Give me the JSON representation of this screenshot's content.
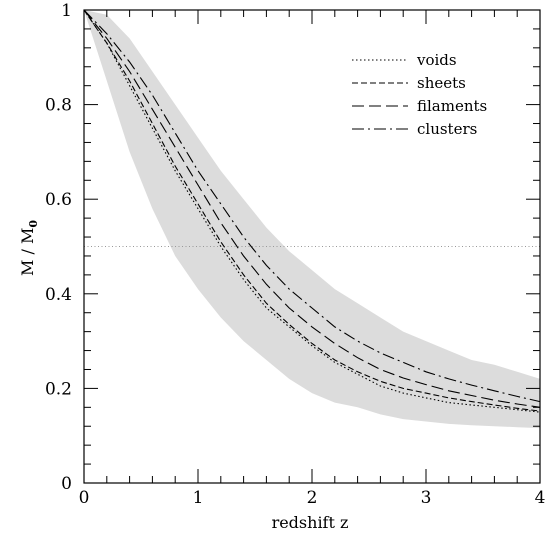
{
  "chart_data": {
    "type": "line",
    "xlabel": "redshift z",
    "ylabel": {
      "main": "M / M",
      "subscript": "0"
    },
    "xlim": [
      0,
      4
    ],
    "ylim": [
      0,
      1
    ],
    "x_ticks": [
      0,
      1,
      2,
      3,
      4
    ],
    "y_ticks": [
      0,
      0.2,
      0.4,
      0.6,
      0.8,
      1
    ],
    "x_tick_labels": [
      "0",
      "1",
      "2",
      "3",
      "4"
    ],
    "y_tick_labels": [
      "0",
      "0.2",
      "0.4",
      "0.6",
      "0.8",
      "1"
    ],
    "grid": false,
    "legend_position": "top-right",
    "reference_line": {
      "y": 0.5,
      "style": "dotted",
      "color": "#999999"
    },
    "band": {
      "color": "#dcdcdc",
      "x": [
        0,
        0.2,
        0.4,
        0.6,
        0.8,
        1.0,
        1.2,
        1.4,
        1.6,
        1.8,
        2.0,
        2.2,
        2.4,
        2.6,
        2.8,
        3.0,
        3.2,
        3.4,
        3.6,
        3.8,
        4.0
      ],
      "lower": [
        1.0,
        0.85,
        0.7,
        0.58,
        0.48,
        0.41,
        0.35,
        0.3,
        0.26,
        0.22,
        0.19,
        0.17,
        0.16,
        0.145,
        0.135,
        0.13,
        0.125,
        0.122,
        0.12,
        0.118,
        0.116
      ],
      "upper": [
        1.0,
        0.99,
        0.94,
        0.87,
        0.8,
        0.73,
        0.66,
        0.6,
        0.54,
        0.49,
        0.45,
        0.41,
        0.38,
        0.35,
        0.32,
        0.3,
        0.28,
        0.26,
        0.25,
        0.235,
        0.22
      ]
    },
    "x": [
      0,
      0.2,
      0.4,
      0.6,
      0.8,
      1.0,
      1.2,
      1.4,
      1.6,
      1.8,
      2.0,
      2.2,
      2.4,
      2.6,
      2.8,
      3.0,
      3.2,
      3.4,
      3.6,
      3.8,
      4.0
    ],
    "series": [
      {
        "name": "voids",
        "dash": "1.5,2.5",
        "values": [
          1.0,
          0.93,
          0.84,
          0.75,
          0.66,
          0.58,
          0.5,
          0.43,
          0.37,
          0.33,
          0.29,
          0.255,
          0.23,
          0.205,
          0.19,
          0.18,
          0.17,
          0.165,
          0.16,
          0.155,
          0.15
        ]
      },
      {
        "name": "sheets",
        "dash": "6,3",
        "values": [
          1.0,
          0.93,
          0.85,
          0.76,
          0.67,
          0.59,
          0.51,
          0.44,
          0.38,
          0.335,
          0.295,
          0.26,
          0.235,
          0.215,
          0.2,
          0.19,
          0.18,
          0.172,
          0.165,
          0.158,
          0.152
        ]
      },
      {
        "name": "filaments",
        "dash": "12,5",
        "values": [
          1.0,
          0.94,
          0.87,
          0.79,
          0.71,
          0.63,
          0.55,
          0.48,
          0.42,
          0.37,
          0.33,
          0.295,
          0.265,
          0.24,
          0.222,
          0.208,
          0.195,
          0.185,
          0.175,
          0.167,
          0.16
        ]
      },
      {
        "name": "clusters",
        "dash": "12,4,2,4",
        "values": [
          1.0,
          0.95,
          0.89,
          0.82,
          0.74,
          0.66,
          0.59,
          0.52,
          0.46,
          0.41,
          0.37,
          0.33,
          0.3,
          0.275,
          0.255,
          0.235,
          0.22,
          0.207,
          0.195,
          0.183,
          0.172
        ]
      }
    ]
  }
}
